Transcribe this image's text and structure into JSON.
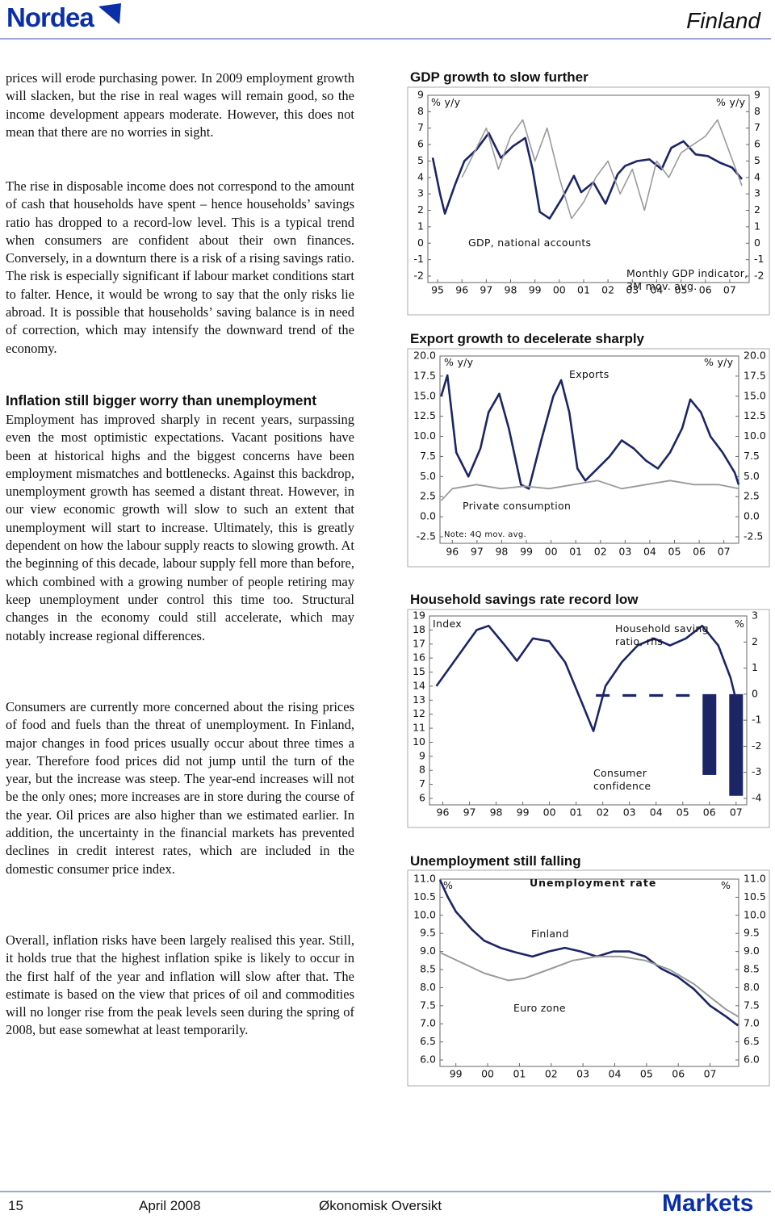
{
  "header": {
    "logo": "Nordea",
    "section": "Finland"
  },
  "paragraphs_1": [
    "prices will erode purchasing power. In 2009 employment growth will slacken, but the rise in real wages will remain good, so the income development appears moderate. However, this does not mean that there are no worries in sight.",
    "The rise in disposable income does not correspond to the amount of cash that households have spent – hence households’ savings ratio has dropped to a record-low level. This is a typical trend when consumers are confident about their own finances. Conversely, in a downturn there is a risk of a rising savings ratio. The risk is especially significant if labour market conditions start to falter. Hence, it would be wrong to say that the only risks lie abroad. It is possible that households’ saving balance is in need of correction, which may intensify the downward trend of the economy."
  ],
  "heading": "Inflation still bigger worry than unemployment",
  "paragraphs_2": [
    "Employment has improved sharply in recent years, surpassing even the most optimistic expectations. Vacant positions have been at historical highs and the biggest concerns have been employment mismatches and bottlenecks. Against this backdrop, unemployment growth has seemed a distant threat. However, in our view economic growth will slow to such an extent that unemployment will start to increase. Ultimately, this is greatly dependent on how the labour supply reacts to slowing growth. At the beginning of this decade, labour supply fell more than before, which combined with a growing number of people retiring may keep unemployment under control this time too. Structural changes in the economy could still accelerate, which may notably increase regional differences.",
    "Consumers are currently more concerned about the rising prices of food and fuels than the threat of unemployment. In Finland, major changes in food prices usually occur about three times a year. Therefore food prices did not jump until the turn of the year, but the increase was steep. The year-end increases will not be the only ones; more increases are in store during the course of the year. Oil prices are also higher than we estimated earlier. In addition, the uncertainty in the financial markets has prevented declines in credit interest rates, which are included in the domestic consumer price index.",
    "Overall, inflation risks have been largely realised this year. Still, it holds true that the highest inflation spike is likely to occur in the first half of the year and inflation will slow after that. The estimate is based on the view that prices of oil and commodities will no longer rise from the peak levels seen during the spring of 2008, but ease somewhat at least temporarily."
  ],
  "chart_data": [
    {
      "type": "line",
      "title": "GDP growth to slow further",
      "ylabel": "% y/y",
      "y2label": "% y/y",
      "xlim": [
        1994.6,
        2007.8
      ],
      "xticks": [
        {
          "value": 1995,
          "label": "95"
        },
        {
          "value": 1996,
          "label": "96"
        },
        {
          "value": 1997,
          "label": "97"
        },
        {
          "value": 1998,
          "label": "98"
        },
        {
          "value": 1999,
          "label": "99"
        },
        {
          "value": 2000,
          "label": "00"
        },
        {
          "value": 2001,
          "label": "01"
        },
        {
          "value": 2002,
          "label": "02"
        },
        {
          "value": 2003,
          "label": "03"
        },
        {
          "value": 2004,
          "label": "04"
        },
        {
          "value": 2005,
          "label": "05"
        },
        {
          "value": 2006,
          "label": "06"
        },
        {
          "value": 2007,
          "label": "07"
        }
      ],
      "ylim": [
        -2,
        9
      ],
      "yticks": [
        -2,
        -1,
        0,
        1,
        2,
        3,
        4,
        5,
        6,
        7,
        8,
        9
      ],
      "y2lim": [
        -2,
        9
      ],
      "y2ticks": [
        -2,
        -1,
        0,
        1,
        2,
        3,
        4,
        5,
        6,
        7,
        8,
        9
      ],
      "series": [
        {
          "name": "GDP, national accounts",
          "color": "#1c2566",
          "width": 2.6,
          "x": [
            1994.8,
            1995.1,
            1995.3,
            1995.7,
            1996.1,
            1996.6,
            1997.1,
            1997.6,
            1998.1,
            1998.6,
            1998.9,
            1999.2,
            1999.6,
            2000.1,
            2000.6,
            2000.9,
            2001.4,
            2001.9,
            2002.4,
            2002.7,
            2003.2,
            2003.7,
            2004.2,
            2004.6,
            2005.1,
            2005.6,
            2006.1,
            2006.6,
            2007.1,
            2007.5
          ],
          "values": [
            5.2,
            3,
            1.8,
            3.5,
            5,
            5.7,
            6.7,
            5.2,
            5.9,
            6.4,
            4.5,
            1.9,
            1.5,
            2.7,
            4.1,
            3.1,
            3.7,
            2.4,
            4.2,
            4.7,
            5,
            5.1,
            4.5,
            5.8,
            6.2,
            5.4,
            5.3,
            4.9,
            4.6,
            3.9
          ]
        },
        {
          "name": "Monthly GDP indicator, 3M mov. avg.",
          "color": "#9a9a9a",
          "width": 1.6,
          "x": [
            1996,
            1996.5,
            1997,
            1997.5,
            1998,
            1998.5,
            1999,
            1999.5,
            2000,
            2000.5,
            2001,
            2001.5,
            2002,
            2002.5,
            2003,
            2003.5,
            2004,
            2004.5,
            2005,
            2005.5,
            2006,
            2006.5,
            2007,
            2007.5
          ],
          "values": [
            4,
            5.5,
            7,
            4.5,
            6.5,
            7.5,
            5,
            7,
            4,
            1.5,
            2.5,
            4,
            5,
            3,
            4.5,
            2,
            5,
            4,
            5.5,
            6,
            6.5,
            7.5,
            5.5,
            3.5
          ]
        }
      ]
    },
    {
      "type": "line",
      "title": "Export growth to decelerate sharply",
      "ylabel": "% y/y",
      "y2label": "% y/y",
      "note": "Note: 4Q mov. avg.",
      "xlim": [
        1995.5,
        2007.6
      ],
      "xticks": [
        {
          "value": 1996,
          "label": "96"
        },
        {
          "value": 1997,
          "label": "97"
        },
        {
          "value": 1998,
          "label": "98"
        },
        {
          "value": 1999,
          "label": "99"
        },
        {
          "value": 2000,
          "label": "00"
        },
        {
          "value": 2001,
          "label": "01"
        },
        {
          "value": 2002,
          "label": "02"
        },
        {
          "value": 2003,
          "label": "03"
        },
        {
          "value": 2004,
          "label": "04"
        },
        {
          "value": 2005,
          "label": "05"
        },
        {
          "value": 2006,
          "label": "06"
        },
        {
          "value": 2007,
          "label": "07"
        }
      ],
      "ylim": [
        -2.5,
        20
      ],
      "yticks": [
        -2.5,
        {
          "value": 0,
          "label": "0.0"
        },
        2.5,
        {
          "value": 5,
          "label": "5.0"
        },
        7.5,
        {
          "value": 10,
          "label": "10.0"
        },
        12.5,
        {
          "value": 15,
          "label": "15.0"
        },
        17.5,
        {
          "value": 20,
          "label": "20.0"
        }
      ],
      "y2lim": [
        -2.5,
        20
      ],
      "y2ticks": [
        -2.5,
        {
          "value": 0,
          "label": "0.0"
        },
        2.5,
        {
          "value": 5,
          "label": "5.0"
        },
        7.5,
        {
          "value": 10,
          "label": "10.0"
        },
        12.5,
        {
          "value": 15,
          "label": "15.0"
        },
        17.5,
        {
          "value": 20,
          "label": "20.0"
        }
      ],
      "series": [
        {
          "name": "Exports",
          "color": "#1c2566",
          "width": 2.6,
          "x": [
            1995.55,
            1995.8,
            1996.16,
            1996.65,
            1997.14,
            1997.47,
            1997.9,
            1998.29,
            1998.78,
            1999.1,
            1999.6,
            2000.09,
            2000.41,
            2000.74,
            2001.07,
            2001.39,
            2001.88,
            2002.37,
            2002.86,
            2003.35,
            2003.84,
            2004.33,
            2004.82,
            2005.31,
            2005.64,
            2006.07,
            2006.46,
            2006.95,
            2007.44,
            2007.6
          ],
          "values": [
            15,
            17.6,
            8,
            5,
            8.5,
            13,
            15.3,
            11,
            4,
            3.5,
            9.5,
            15,
            17,
            13,
            6,
            4.5,
            6,
            7.5,
            9.5,
            8.5,
            7,
            6,
            8,
            11,
            14.6,
            13,
            10,
            8,
            5.5,
            4
          ]
        },
        {
          "name": "Private consumption",
          "color": "#9a9a9a",
          "width": 1.8,
          "x": [
            1995.55,
            1996,
            1996.98,
            1997.96,
            1998.94,
            1999.92,
            2000.9,
            2001.88,
            2002.86,
            2003.84,
            2004.82,
            2005.8,
            2006.78,
            2007.6
          ],
          "values": [
            2,
            3.5,
            4,
            3.5,
            3.8,
            3.5,
            4,
            4.5,
            3.5,
            4,
            4.5,
            4,
            4,
            3.5
          ]
        }
      ]
    },
    {
      "type": "combo",
      "title": "Household savings rate record low",
      "ylabel": "Index",
      "y2label": "%",
      "xlim": [
        1995.5,
        2007.4
      ],
      "xticks": [
        {
          "value": 1996,
          "label": "96"
        },
        {
          "value": 1997,
          "label": "97"
        },
        {
          "value": 1998,
          "label": "98"
        },
        {
          "value": 1999,
          "label": "99"
        },
        {
          "value": 2000,
          "label": "00"
        },
        {
          "value": 2001,
          "label": "01"
        },
        {
          "value": 2002,
          "label": "02"
        },
        {
          "value": 2003,
          "label": "03"
        },
        {
          "value": 2004,
          "label": "04"
        },
        {
          "value": 2005,
          "label": "05"
        },
        {
          "value": 2006,
          "label": "06"
        },
        {
          "value": 2007,
          "label": "07"
        }
      ],
      "ylim": [
        6,
        19
      ],
      "yticks": [
        6,
        7,
        8,
        9,
        10,
        11,
        12,
        13,
        14,
        15,
        16,
        17,
        18,
        19
      ],
      "y2lim": [
        -4,
        3
      ],
      "y2ticks": [
        -4,
        -3,
        -2,
        -1,
        0,
        1,
        2,
        3
      ],
      "series": [
        {
          "name": "Consumer confidence",
          "type": "line",
          "color": "#1c2566",
          "width": 2.6,
          "x": [
            1995.76,
            1997.27,
            1997.72,
            1998.33,
            1998.78,
            1999.38,
            1999.99,
            2000.59,
            2001.2,
            2001.65,
            2002.1,
            2002.71,
            2003.31,
            2003.92,
            2004.52,
            2005.12,
            2005.73,
            2006.33,
            2006.79,
            2007.09
          ],
          "values": [
            14,
            18,
            18.3,
            16.9,
            15.8,
            17.4,
            17.2,
            15.7,
            12.9,
            10.8,
            14,
            15.7,
            16.9,
            17.4,
            16.9,
            17.4,
            18.3,
            16.9,
            14.6,
            12.3
          ]
        },
        {
          "name": "Household saving ratio, rhs",
          "type": "bar",
          "axis": "y2",
          "color": "#1c2566",
          "x": [
            2002,
            2003,
            2004,
            2005,
            2006,
            2007
          ],
          "values": [
            -0.1,
            -0.1,
            -0.1,
            -0.1,
            -3.1,
            -3.9
          ]
        }
      ]
    },
    {
      "type": "line",
      "title": "Unemployment still falling",
      "subtitle": "Unemployment rate",
      "ylabel": "%",
      "y2label": "%",
      "xlim": [
        1998.5,
        2007.9
      ],
      "xticks": [
        {
          "value": 1999,
          "label": "99"
        },
        {
          "value": 2000,
          "label": "00"
        },
        {
          "value": 2001,
          "label": "01"
        },
        {
          "value": 2002,
          "label": "02"
        },
        {
          "value": 2003,
          "label": "03"
        },
        {
          "value": 2004,
          "label": "04"
        },
        {
          "value": 2005,
          "label": "05"
        },
        {
          "value": 2006,
          "label": "06"
        },
        {
          "value": 2007,
          "label": "07"
        }
      ],
      "ylim": [
        6,
        11
      ],
      "yticks": [
        {
          "value": 6,
          "label": "6.0"
        },
        6.5,
        {
          "value": 7,
          "label": "7.0"
        },
        7.5,
        {
          "value": 8,
          "label": "8.0"
        },
        8.5,
        {
          "value": 9,
          "label": "9.0"
        },
        9.5,
        {
          "value": 10,
          "label": "10.0"
        },
        10.5,
        {
          "value": 11,
          "label": "11.0"
        }
      ],
      "y2lim": [
        6,
        11
      ],
      "y2ticks": [
        {
          "value": 6,
          "label": "6.0"
        },
        6.5,
        {
          "value": 7,
          "label": "7.0"
        },
        7.5,
        {
          "value": 8,
          "label": "8.0"
        },
        8.5,
        {
          "value": 9,
          "label": "9.0"
        },
        9.5,
        {
          "value": 10,
          "label": "10.0"
        },
        10.5,
        {
          "value": 11,
          "label": "11.0"
        }
      ],
      "series": [
        {
          "name": "Finland",
          "color": "#1c2566",
          "width": 2.6,
          "x": [
            1998.5,
            1998.75,
            1999,
            1999.51,
            1999.89,
            2000.4,
            2000.9,
            2001.41,
            2001.92,
            2002.43,
            2002.93,
            2003.44,
            2003.95,
            2004.46,
            2004.96,
            2005.47,
            2005.98,
            2006.49,
            2007,
            2007.5,
            2007.88
          ],
          "values": [
            10.98,
            10.5,
            10.1,
            9.6,
            9.3,
            9.1,
            8.97,
            8.86,
            9,
            9.1,
            9,
            8.86,
            9,
            9,
            8.86,
            8.52,
            8.3,
            7.96,
            7.5,
            7.2,
            6.95
          ]
        },
        {
          "name": "Euro zone",
          "color": "#9a9a9a",
          "width": 2,
          "x": [
            1998.5,
            1999.89,
            2000.65,
            2001.16,
            2001.92,
            2002.68,
            2003.44,
            2004.2,
            2004.96,
            2005.72,
            2006.49,
            2007,
            2007.5,
            2007.88
          ],
          "values": [
            8.97,
            8.4,
            8.2,
            8.26,
            8.5,
            8.75,
            8.86,
            8.86,
            8.75,
            8.5,
            8.1,
            7.74,
            7.4,
            7.2
          ]
        }
      ]
    }
  ],
  "footer": {
    "page": "15",
    "date": "April 2008",
    "publication": "Økonomisk Oversikt",
    "brand": "Markets"
  }
}
